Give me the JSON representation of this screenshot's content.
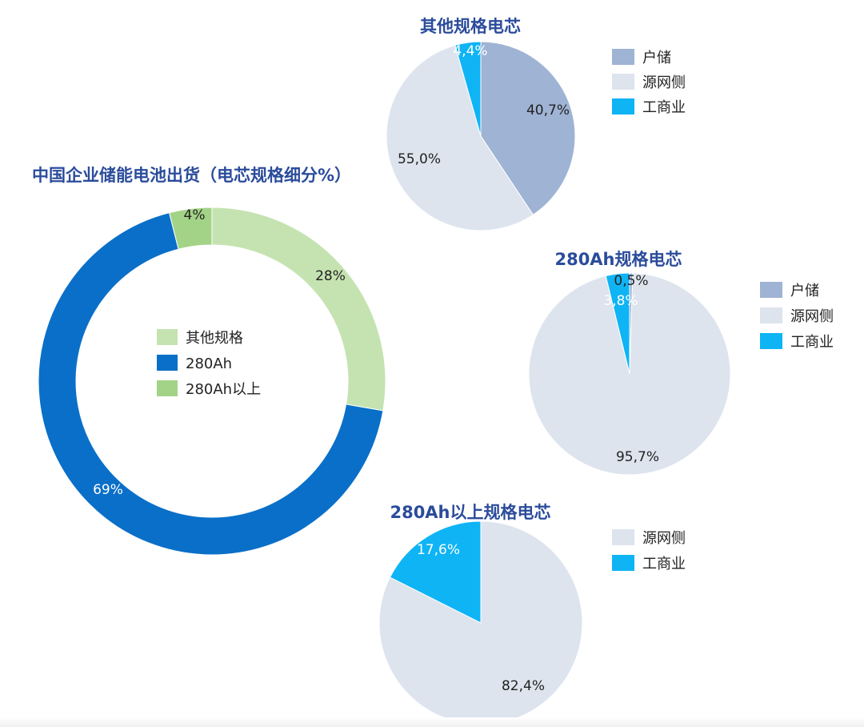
{
  "colors": {
    "other_spec": "#c5e3b1",
    "ah280": "#0a6fc8",
    "ah280_plus": "#a3d387",
    "household": "#9fb3d4",
    "grid_side": "#dde4ee",
    "commercial": "#0fb4f5",
    "title": "#2b4c9b"
  },
  "chart_data": [
    {
      "id": "main",
      "type": "pie",
      "subtype": "donut",
      "title": "中国企业储能电池出货（电芯规格细分%）",
      "categories": [
        "其他规格",
        "280Ah",
        "280Ah以上"
      ],
      "values": [
        28,
        69,
        4
      ],
      "labels": [
        "28%",
        "69%",
        "4%"
      ],
      "legend": [
        "其他规格",
        "280Ah",
        "280Ah以上"
      ],
      "legend_position": "center"
    },
    {
      "id": "other",
      "type": "pie",
      "title": "其他规格电芯",
      "categories": [
        "户储",
        "源网侧",
        "工商业"
      ],
      "values": [
        40.7,
        55.0,
        4.4
      ],
      "labels": [
        "40,7%",
        "55,0%",
        "4,4%"
      ],
      "legend": [
        "户储",
        "源网侧",
        "工商业"
      ],
      "legend_position": "right"
    },
    {
      "id": "ah280",
      "type": "pie",
      "title": "280Ah规格电芯",
      "categories": [
        "户储",
        "源网侧",
        "工商业"
      ],
      "values": [
        0.5,
        95.7,
        3.8
      ],
      "labels": [
        "0,5%",
        "95,7%",
        "3,8%"
      ],
      "legend": [
        "户储",
        "源网侧",
        "工商业"
      ],
      "legend_position": "right"
    },
    {
      "id": "ah280plus",
      "type": "pie",
      "title": "280Ah以上规格电芯",
      "categories": [
        "源网侧",
        "工商业"
      ],
      "values": [
        82.4,
        17.6
      ],
      "labels": [
        "82,4%",
        "17,6%"
      ],
      "legend": [
        "源网侧",
        "工商业"
      ],
      "legend_position": "right"
    }
  ]
}
